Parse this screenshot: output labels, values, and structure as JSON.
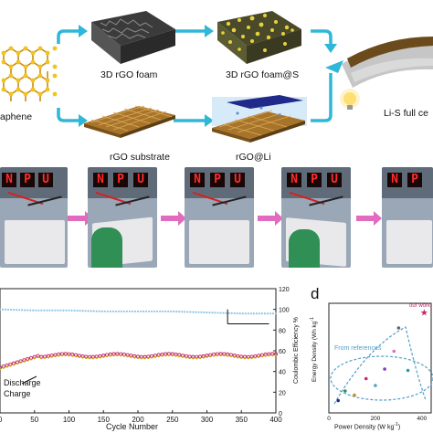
{
  "panel_a": {
    "labels": {
      "graphene": "aphene",
      "foam": "3D rGO foam",
      "foam_s": "3D rGO foam@S",
      "full_cell": "Li-S full ce",
      "substrate": "rGO substrate",
      "rgo_li": "rGO@Li"
    }
  },
  "panel_b": {
    "led_letters": [
      "N",
      "P",
      "U"
    ]
  },
  "panel_c": {
    "xlabel": "Cycle Number",
    "ylabel_right": "Coulombic Efficiency %",
    "x_ticks": [
      "0",
      "50",
      "100",
      "150",
      "200",
      "250",
      "300",
      "350",
      "400"
    ],
    "y_right_ticks": [
      "120",
      "100",
      "80",
      "60",
      "40",
      "20",
      "0"
    ],
    "legend_discharge": "Discharge",
    "legend_charge": "Charge",
    "colors": {
      "ce": "#8fc3e6",
      "discharge": "#c2286c",
      "charge": "#c9a300"
    }
  },
  "panel_d": {
    "letter": "d",
    "xlabel": "Power Density (W kg",
    "x_sup": "-1",
    "xlabel_end": ")",
    "ylabel": "Energy Density (Wh kg",
    "y_sup": "-1",
    "x_ticks": [
      "0",
      "200",
      "400"
    ],
    "our_work": "our work",
    "from_references": "From references"
  },
  "chart_data": [
    {
      "type": "line",
      "title": "",
      "xlabel": "Cycle Number",
      "ylabel": "Coulombic Efficiency %",
      "xlim": [
        0,
        400
      ],
      "ylim": [
        0,
        120
      ],
      "series": [
        {
          "name": "",
          "x": [
            0,
            50,
            100,
            150,
            200,
            250,
            300,
            350,
            400
          ],
          "values": [
            100,
            99,
            99,
            98,
            98,
            98,
            97,
            96,
            96
          ]
        }
      ]
    },
    {
      "type": "scatter",
      "title": "",
      "xlabel": "Power Density (W kg-1)",
      "ylabel": "Energy Density (Wh kg-1)",
      "xlim": [
        0,
        440
      ],
      "series": [
        {
          "name": "our work",
          "x": [
            410
          ],
          "values": [
            710
          ]
        },
        {
          "name": "From references",
          "x": [
            40,
            70,
            110,
            160,
            200,
            240,
            280,
            300,
            340
          ],
          "values": [
            90,
            160,
            130,
            250,
            200,
            320,
            450,
            620,
            310
          ]
        }
      ]
    }
  ]
}
